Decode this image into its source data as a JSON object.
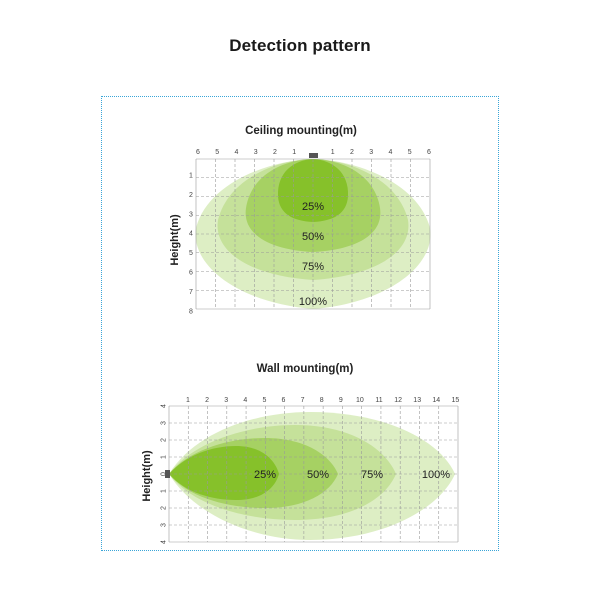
{
  "title": "Detection pattern",
  "colors": {
    "frame_border": "#3aa5d8",
    "zone_100": "#ddeec4",
    "zone_75": "#c5e19a",
    "zone_50": "#a6d163",
    "zone_25": "#86c12a",
    "sensor": "#555555",
    "grid": "#9a9a9a"
  },
  "ceiling": {
    "title": "Ceiling mounting(m)",
    "ylabel": "Height(m)",
    "x_ticks": [
      "6",
      "5",
      "4",
      "3",
      "2",
      "1",
      "",
      "1",
      "2",
      "3",
      "4",
      "5",
      "6"
    ],
    "y_ticks": [
      "1",
      "2",
      "3",
      "4",
      "5",
      "6",
      "7",
      "8"
    ],
    "zone_labels": [
      "25%",
      "50%",
      "75%",
      "100%"
    ]
  },
  "wall": {
    "title": "Wall mounting(m)",
    "ylabel": "Height(m)",
    "x_ticks": [
      "1",
      "2",
      "3",
      "4",
      "5",
      "6",
      "7",
      "8",
      "9",
      "10",
      "11",
      "12",
      "13",
      "14",
      "15"
    ],
    "y_ticks": [
      "4",
      "3",
      "2",
      "1",
      "0",
      "1",
      "2",
      "3",
      "4"
    ],
    "zone_labels": [
      "25%",
      "50%",
      "75%",
      "100%"
    ]
  }
}
